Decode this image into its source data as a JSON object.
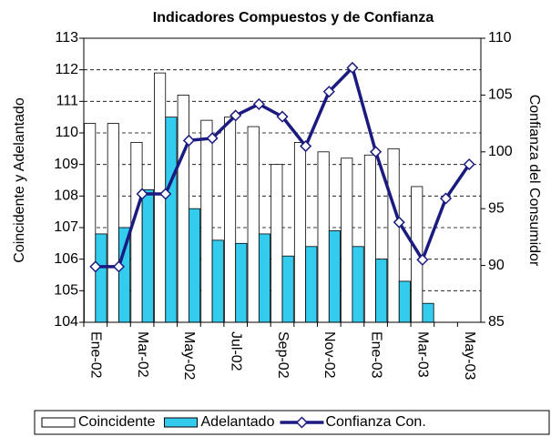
{
  "chart_data": {
    "type": "bar_line",
    "title": "Indicadores Compuestos y de Confianza",
    "ylabel": "Coincidente y Adelantado",
    "y2label": "Confianza del Consumidor",
    "categories": [
      "Ene-02",
      null,
      "Mar-02",
      null,
      "May-02",
      null,
      "Jul-02",
      null,
      "Sep-02",
      null,
      "Nov-02",
      null,
      "Ene-03",
      null,
      "Mar-03",
      null,
      "May-03"
    ],
    "series": [
      {
        "name": "Coincidente",
        "type": "bar",
        "color": "#ffffff",
        "values": [
          110.3,
          110.3,
          109.7,
          111.9,
          111.2,
          110.4,
          110.5,
          110.2,
          109.0,
          109.7,
          109.4,
          109.2,
          109.3,
          109.5,
          108.3,
          null,
          null
        ]
      },
      {
        "name": "Adelantado",
        "type": "bar",
        "color": "#33ccee",
        "values": [
          106.8,
          107.0,
          108.2,
          110.5,
          107.6,
          106.6,
          106.5,
          106.8,
          106.1,
          106.4,
          106.9,
          106.4,
          106.0,
          105.3,
          104.6,
          null,
          null
        ]
      },
      {
        "name": "Confianza Con.",
        "type": "line",
        "axis": "y2",
        "color": "#1a1a80",
        "values": [
          89.9,
          89.9,
          96.3,
          96.3,
          101.0,
          101.2,
          103.2,
          104.2,
          103.1,
          100.5,
          105.3,
          107.4,
          100.0,
          93.8,
          90.5,
          95.9,
          98.9
        ]
      }
    ],
    "ylim": [
      104,
      113
    ],
    "yticks": [
      104,
      105,
      106,
      107,
      108,
      109,
      110,
      111,
      112,
      113
    ],
    "y2lim": [
      85,
      110
    ],
    "y2ticks": [
      85,
      90,
      95,
      100,
      105,
      110
    ],
    "grid": true,
    "legend": "bottom"
  }
}
